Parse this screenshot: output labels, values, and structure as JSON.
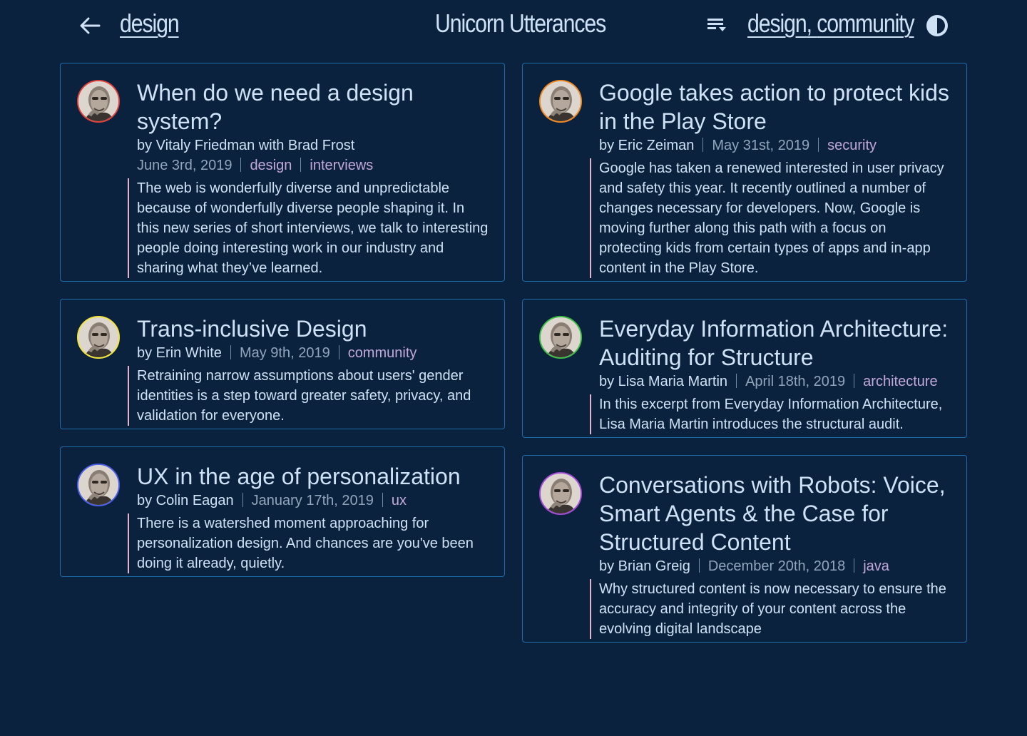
{
  "header": {
    "breadcrumb": "design",
    "site_title": "Unicorn Utterances",
    "filter_tags": [
      "design",
      ", ",
      "community"
    ]
  },
  "colors": {
    "background": "#0b223e",
    "card_border": "#1e6aa8",
    "tag": "#c2a8d8",
    "excerpt_rule": "#e0b6c8"
  },
  "posts_left": [
    {
      "title": "When do we need a design system?",
      "author_line": "by Vitaly Friedman with Brad Frost",
      "date": "June 3rd, 2019",
      "tags": [
        "design",
        "interviews"
      ],
      "excerpt": "The web is wonderfully diverse and unpredictable because of wonderfully diverse people shaping it. In this new series of short interviews, we talk to interesting people doing interesting work in our industry and sharing what they’ve learned.",
      "ring_color": "#e0413a"
    },
    {
      "title": "Trans-inclusive Design",
      "author_line": "by Erin White",
      "date": "May 9th, 2019",
      "tags": [
        "community"
      ],
      "excerpt": "Retraining narrow assumptions about users' gender identities is a step toward greater safety, privacy, and validation for everyone.",
      "ring_color": "#f2e43a"
    },
    {
      "title": "UX in the age of personalization",
      "author_line": "by Colin Eagan",
      "date": "January 17th, 2019",
      "tags": [
        "ux"
      ],
      "excerpt": "There is a watershed moment approaching for personalization design. And chances are you've been doing it already, quietly.",
      "ring_color": "#4a5ee8"
    }
  ],
  "posts_right": [
    {
      "title": "Google takes action to protect kids in the Play Store",
      "author_line": "by Eric Zeiman",
      "date": "May 31st, 2019",
      "tags": [
        "security"
      ],
      "excerpt": "Google has taken a renewed interested in user privacy and safety this year. It recently outlined a number of changes necessary for developers. Now, Google is moving further along this path with a focus on protecting kids from certain types of apps and in-app content in the Play Store.",
      "ring_color": "#f08a24"
    },
    {
      "title": "Everyday Information Architecture: Auditing for Structure",
      "author_line": "by Lisa Maria Martin",
      "date": "April 18th, 2019",
      "tags": [
        "architecture"
      ],
      "excerpt": "In this excerpt from Everyday Information Architecture, Lisa Maria Martin introduces the structural audit.",
      "ring_color": "#3fbf45"
    },
    {
      "title": "Conversations with Robots: Voice, Smart Agents & the Case for Structured Content",
      "author_line": "by Brian Greig",
      "date": "December 20th, 2018",
      "tags": [
        "java"
      ],
      "excerpt": "Why structured content is now necessary to ensure the accuracy and integrity of your content across the evolving digital landscape",
      "ring_color": "#a34ad6"
    }
  ]
}
